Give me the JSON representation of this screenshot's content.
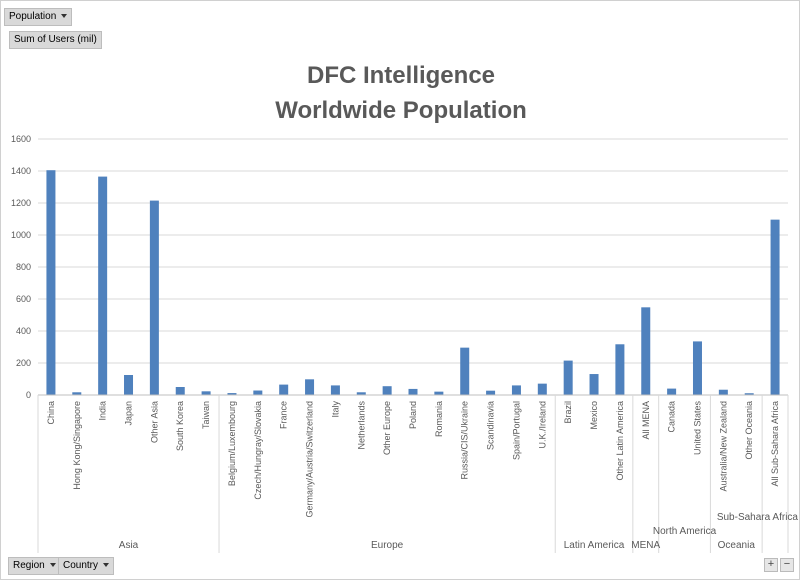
{
  "filters": {
    "population": "Population",
    "value_field": "Sum of Users (mil)",
    "region": "Region",
    "country": "Country"
  },
  "zoom_buttons": {
    "plus": "+",
    "minus": "−"
  },
  "chart_data": {
    "type": "bar",
    "title": [
      "DFC Intelligence",
      "Worldwide Population"
    ],
    "ylim": [
      0,
      1600
    ],
    "yticks": [
      "0",
      "200",
      "400",
      "600",
      "800",
      "1000",
      "1200",
      "1400",
      "1600"
    ],
    "grid": true,
    "color": "#4f81bd",
    "categories": [
      "China",
      "Hong Kong/Singapore",
      "India",
      "Japan",
      "Other Asia",
      "South Korea",
      "Taiwan",
      "Belgium/Luxembourg",
      "Czech/Hungray/Slovakia",
      "France",
      "Germany/Austria/Switzerland",
      "Italy",
      "Netherlands",
      "Other Europe",
      "Poland",
      "Romania",
      "Russia/CIS/Ukraine",
      "Scandinavia",
      "Spain/Portugal",
      "U.K./Ireland",
      "Brazil",
      "Mexico",
      "Other Latin America",
      "All MENA",
      "Canada",
      "United States",
      "Australia/New Zealand",
      "Other Oceania",
      "All Sub-Sahara Africa"
    ],
    "values": [
      1405,
      17,
      1365,
      125,
      1215,
      50,
      23,
      12,
      28,
      65,
      98,
      60,
      17,
      55,
      38,
      21,
      296,
      27,
      60,
      71,
      215,
      131,
      317,
      548,
      40,
      335,
      33,
      11,
      1096
    ],
    "groups": [
      {
        "name": "Asia",
        "count": 7
      },
      {
        "name": "Europe",
        "count": 13
      },
      {
        "name": "Latin America",
        "count": 3
      },
      {
        "name": "MENA",
        "count": 1
      },
      {
        "name": "North America",
        "count": 2
      },
      {
        "name": "Oceania",
        "count": 2
      },
      {
        "name": "Sub-Sahara Africa",
        "count": 1
      }
    ]
  }
}
